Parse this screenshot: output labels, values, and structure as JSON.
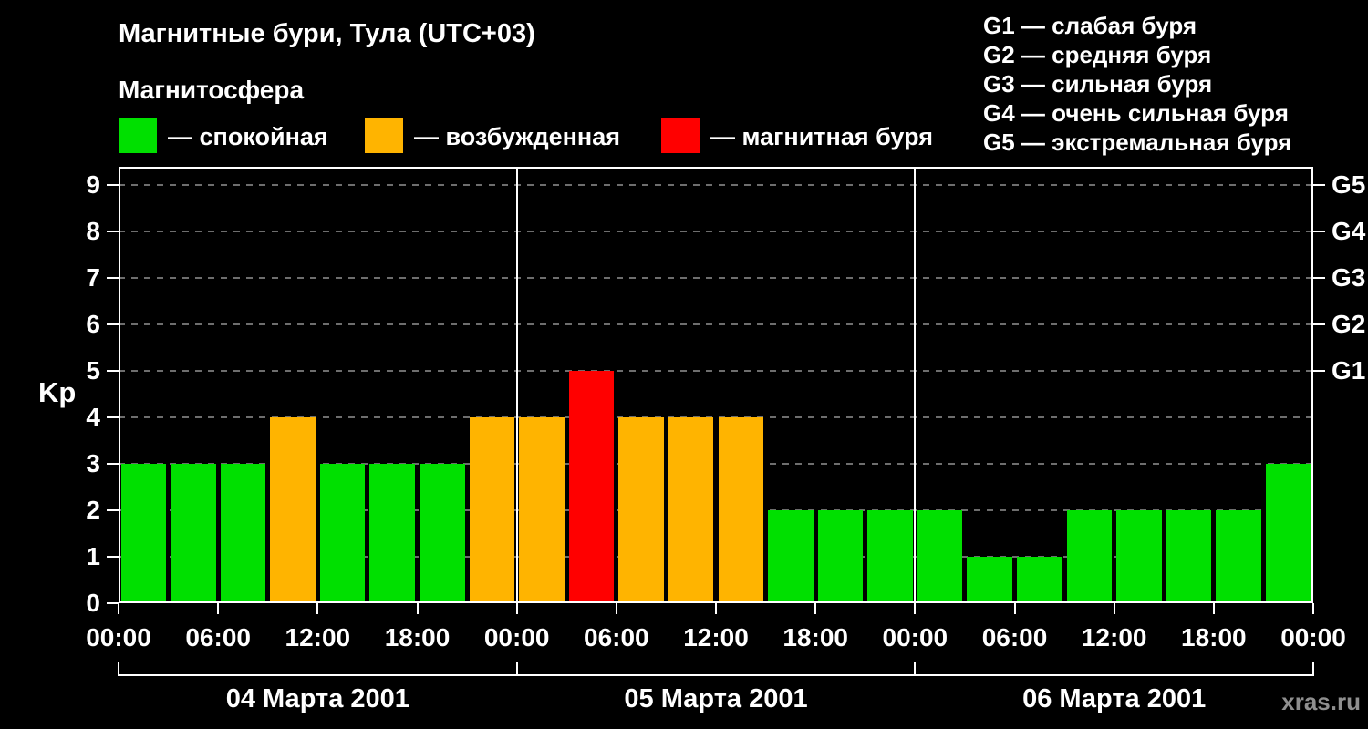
{
  "title": "Магнитные бури, Тула (UTC+03)",
  "subtitle": "Магнитосфера",
  "legend": {
    "quiet": {
      "label": "— спокойная",
      "color": "#00e000"
    },
    "excited": {
      "label": "— возбужденная",
      "color": "#ffb400"
    },
    "storm": {
      "label": "— магнитная буря",
      "color": "#ff0000"
    }
  },
  "g_scale": [
    "G1 — слабая буря",
    "G2 — средняя буря",
    "G3 — сильная буря",
    "G4 — очень сильная буря",
    "G5 — экстремальная буря"
  ],
  "watermark": "xras.ru",
  "chart_data": {
    "type": "bar",
    "title": "Магнитные бури, Тула (UTC+03)",
    "xlabel": "",
    "ylabel": "Kp",
    "ylim": [
      0,
      9.4
    ],
    "yticks": [
      0,
      1,
      2,
      3,
      4,
      5,
      6,
      7,
      8,
      9
    ],
    "right_axis_ticks": [
      {
        "value": 5,
        "label": "G1"
      },
      {
        "value": 6,
        "label": "G2"
      },
      {
        "value": 7,
        "label": "G3"
      },
      {
        "value": 8,
        "label": "G4"
      },
      {
        "value": 9,
        "label": "G5"
      }
    ],
    "grid": "dashed-horizontal",
    "bar_interval_hours": 3,
    "x_tick_labels_per_day": [
      "00:00",
      "06:00",
      "12:00",
      "18:00"
    ],
    "closing_tick_label": "00:00",
    "days": [
      {
        "date": "04 Марта 2001",
        "kp_values": [
          3,
          3,
          3,
          4,
          3,
          3,
          3,
          4
        ]
      },
      {
        "date": "05 Марта 2001",
        "kp_values": [
          4,
          5,
          4,
          4,
          4,
          2,
          2,
          2
        ]
      },
      {
        "date": "06 Марта 2001",
        "kp_values": [
          2,
          1,
          1,
          2,
          2,
          2,
          2,
          3
        ]
      }
    ],
    "colors": {
      "quiet": "#00e000",
      "excited": "#ffb400",
      "storm": "#ff0000",
      "grid": "#6e6e6e",
      "axis": "#ffffff"
    },
    "color_rule": {
      "quiet_max": 3,
      "excited_max": 4
    }
  }
}
